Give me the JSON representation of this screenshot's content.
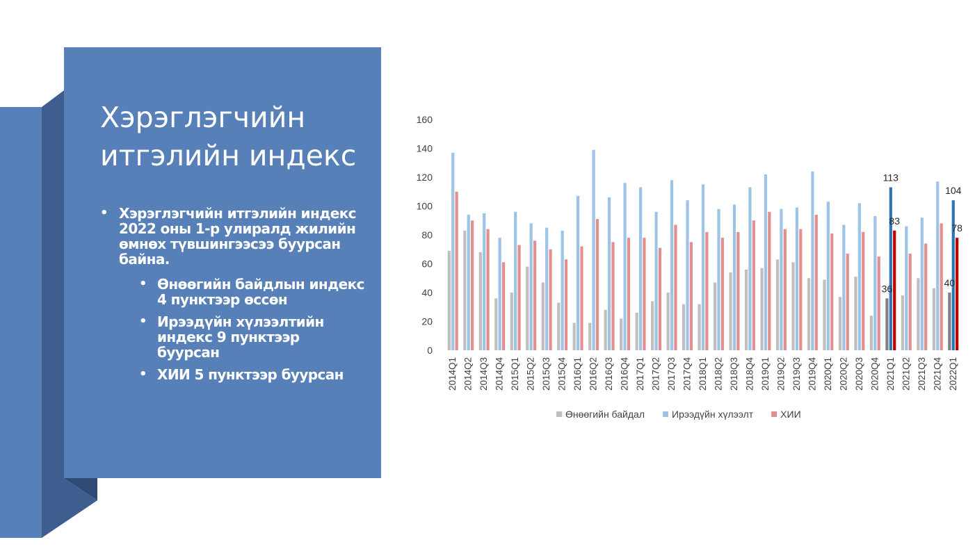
{
  "slide": {
    "title": "Хэрэглэгчийн итгэлийн индекс",
    "bullets": [
      {
        "text": "Хэрэглэгчийн итгэлийн индекс 2022 оны 1-р улиралд жилийн өмнөх түвшингээсээ буурсан байна.",
        "level": 1
      },
      {
        "text": "Өнөөгийн байдлын индекс 4 пунктээр өссөн",
        "level": 2
      },
      {
        "text": "Ирээдүйн хүлээлтийн индекс 9 пунктээр буурсан",
        "level": 2
      },
      {
        "text": "ХИИ 5 пунктээр буурсан",
        "level": 2
      }
    ],
    "bullet_glyph": "•"
  },
  "colors": {
    "panel": "#5780b9",
    "panel_dark": "#3e5e8f"
  },
  "chart_data": {
    "type": "bar",
    "categories": [
      "2014Q1",
      "2014Q2",
      "2014Q3",
      "2014Q4",
      "2015Q1",
      "2015Q2",
      "2015Q3",
      "2015Q4",
      "2016Q1",
      "2016Q2",
      "2016Q3",
      "2016Q4",
      "2017Q1",
      "2017Q2",
      "2017Q3",
      "2017Q4",
      "2018Q1",
      "2018Q2",
      "2018Q3",
      "2018Q4",
      "2019Q1",
      "2019Q2",
      "2019Q3",
      "2019Q4",
      "2020Q1",
      "2020Q2",
      "2020Q3",
      "2020Q4",
      "2021Q1",
      "2021Q2",
      "2021Q3",
      "2021Q4",
      "2022Q1"
    ],
    "series": [
      {
        "name": "Өнөөгийн байдал",
        "color": "#bfbfbf",
        "highlight_color": "#7f7f7f",
        "values": [
          69,
          83,
          68,
          36,
          40,
          58,
          47,
          33,
          19,
          19,
          28,
          22,
          26,
          34,
          40,
          32,
          32,
          47,
          54,
          56,
          57,
          63,
          61,
          50,
          49,
          37,
          51,
          24,
          36,
          38,
          50,
          43,
          40
        ]
      },
      {
        "name": "Ирээдүйн хүлээлт",
        "color": "#9dc3e6",
        "highlight_color": "#2e75b6",
        "values": [
          137,
          94,
          95,
          78,
          96,
          88,
          85,
          83,
          107,
          139,
          106,
          116,
          113,
          96,
          118,
          104,
          115,
          98,
          101,
          113,
          122,
          98,
          99,
          124,
          103,
          87,
          102,
          93,
          113,
          86,
          92,
          117,
          104
        ]
      },
      {
        "name": "ХИИ",
        "color": "#e38f8f",
        "highlight_color": "#c00000",
        "values": [
          110,
          90,
          84,
          61,
          73,
          76,
          70,
          63,
          72,
          91,
          75,
          78,
          78,
          71,
          87,
          75,
          82,
          78,
          82,
          90,
          96,
          84,
          84,
          94,
          81,
          67,
          82,
          65,
          83,
          67,
          74,
          88,
          78
        ]
      }
    ],
    "highlight_categories": [
      "2021Q1",
      "2022Q1"
    ],
    "data_labels": [
      {
        "category": "2021Q1",
        "series": "Өнөөгийн байдал",
        "value": 36
      },
      {
        "category": "2021Q1",
        "series": "Ирээдүйн хүлээлт",
        "value": 113
      },
      {
        "category": "2021Q1",
        "series": "ХИИ",
        "value": 83
      },
      {
        "category": "2022Q1",
        "series": "Өнөөгийн байдал",
        "value": 40
      },
      {
        "category": "2022Q1",
        "series": "Ирээдүйн хүлээлт",
        "value": 104
      },
      {
        "category": "2022Q1",
        "series": "ХИИ",
        "value": 78
      }
    ],
    "ylim": [
      0,
      160
    ],
    "yticks": [
      0,
      20,
      40,
      60,
      80,
      100,
      120,
      140,
      160
    ],
    "grid": false,
    "legend_position": "bottom",
    "title": "",
    "xlabel": "",
    "ylabel": ""
  }
}
